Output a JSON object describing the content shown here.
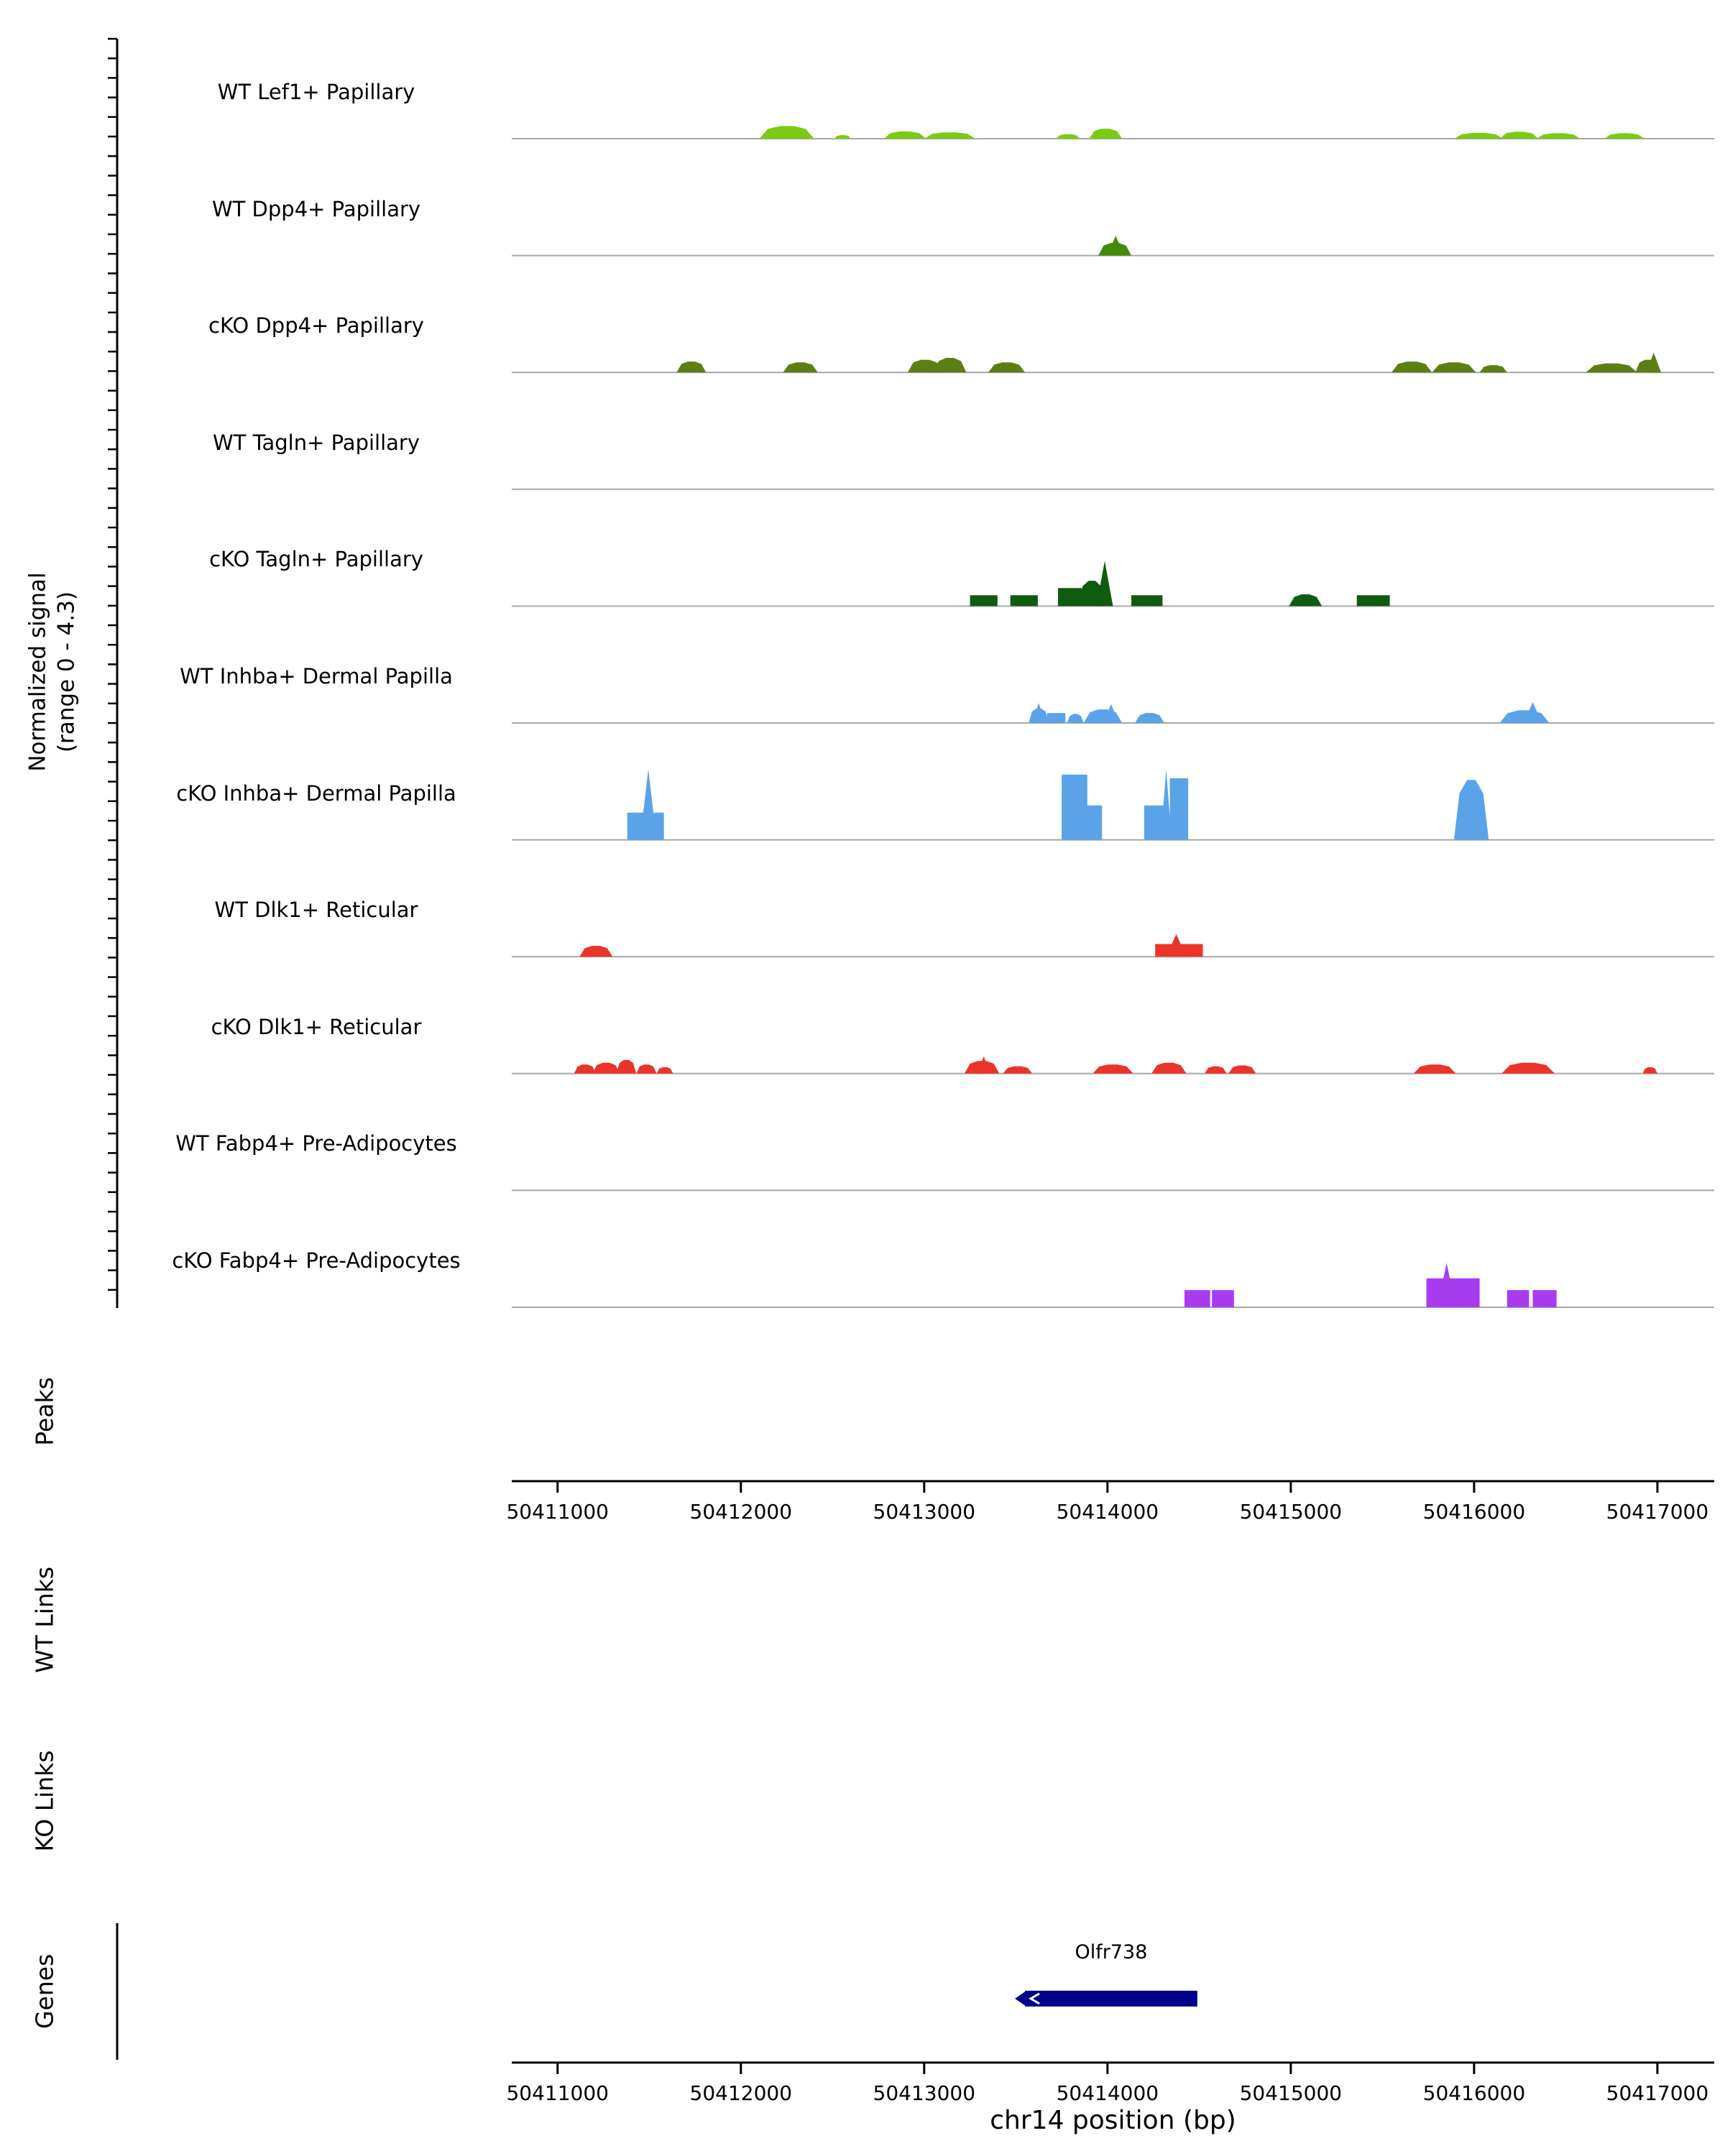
{
  "y_axis": {
    "label_line1": "Normalized signal",
    "label_line2": "(range 0 - 4.3)",
    "range_min": 0,
    "range_max": 4.3
  },
  "sections": [
    {
      "id": "peaks",
      "label": "Peaks"
    },
    {
      "id": "wt_links",
      "label": "WT Links"
    },
    {
      "id": "ko_links",
      "label": "KO Links"
    },
    {
      "id": "genes",
      "label": "Genes"
    }
  ],
  "x_axis": {
    "title": "chr14 position (bp)",
    "tick_values": [
      50411000,
      50412000,
      50413000,
      50414000,
      50415000,
      50416000,
      50417000
    ],
    "tick_labels": [
      "50411000",
      "50412000",
      "50413000",
      "50414000",
      "50415000",
      "50416000",
      "50417000"
    ],
    "domain": [
      50410750,
      50417310
    ]
  },
  "genes": [
    {
      "name": "Olfr738",
      "start": 50413550,
      "end": 50414490,
      "strand": "-",
      "color": "#00008B"
    }
  ],
  "colors": {
    "baseline": "#A8A8A8",
    "axis": "#000000",
    "gene": "#00008B"
  },
  "chart_data": {
    "type": "area",
    "title": "",
    "xlabel": "chr14 position (bp)",
    "ylabel": "Normalized signal (range 0 - 4.3)",
    "x_domain": [
      50410750,
      50417310
    ],
    "y_range": [
      0,
      4.3
    ],
    "peak_format": "[start_bp, end_bp, height_normalized, shape(b=bump,r=rect,s=spike)]",
    "tracks": [
      {
        "label": "WT Lef1+ Papillary",
        "color": "#79CC13",
        "peaks": [
          [
            50412100,
            50412400,
            0.7,
            "b"
          ],
          [
            50412510,
            50412600,
            0.2,
            "b"
          ],
          [
            50412780,
            50413010,
            0.4,
            "b"
          ],
          [
            50413000,
            50413280,
            0.35,
            "b"
          ],
          [
            50413720,
            50413850,
            0.25,
            "b"
          ],
          [
            50413900,
            50414080,
            0.55,
            "b"
          ],
          [
            50415890,
            50416160,
            0.32,
            "b"
          ],
          [
            50416140,
            50416350,
            0.38,
            "b"
          ],
          [
            50416340,
            50416580,
            0.3,
            "b"
          ],
          [
            50416710,
            50416930,
            0.3,
            "b"
          ]
        ]
      },
      {
        "label": "WT Dpp4+ Papillary",
        "color": "#438A0B",
        "peaks": [
          [
            50413950,
            50414130,
            0.7,
            "b"
          ],
          [
            50414000,
            50414090,
            1.1,
            "s"
          ]
        ]
      },
      {
        "label": "cKO Dpp4+ Papillary",
        "color": "#5D7E12",
        "peaks": [
          [
            50411650,
            50411810,
            0.6,
            "b"
          ],
          [
            50412230,
            50412420,
            0.55,
            "b"
          ],
          [
            50412910,
            50413100,
            0.7,
            "b"
          ],
          [
            50413050,
            50413230,
            0.8,
            "b"
          ],
          [
            50413350,
            50413550,
            0.55,
            "b"
          ],
          [
            50415550,
            50415770,
            0.6,
            "b"
          ],
          [
            50415770,
            50416010,
            0.55,
            "b"
          ],
          [
            50416030,
            50416180,
            0.4,
            "b"
          ],
          [
            50416610,
            50416890,
            0.5,
            "b"
          ],
          [
            50416880,
            50417020,
            0.7,
            "b"
          ],
          [
            50416940,
            50417020,
            1.1,
            "s"
          ]
        ]
      },
      {
        "label": "WT Tagln+ Papillary",
        "color": "#3B7A23",
        "peaks": []
      },
      {
        "label": "cKO Tagln+ Papillary",
        "color": "#115B11",
        "peaks": [
          [
            50413250,
            50413400,
            0.6,
            "r"
          ],
          [
            50413470,
            50413620,
            0.6,
            "r"
          ],
          [
            50413730,
            50413860,
            1.0,
            "r"
          ],
          [
            50413840,
            50413990,
            1.4,
            "b"
          ],
          [
            50413940,
            50414030,
            2.5,
            "s"
          ],
          [
            50414130,
            50414300,
            0.6,
            "r"
          ],
          [
            50414990,
            50415170,
            0.65,
            "b"
          ],
          [
            50415360,
            50415540,
            0.6,
            "r"
          ]
        ]
      },
      {
        "label": "WT Inhba+ Dermal Papilla",
        "color": "#5BA3E8",
        "peaks": [
          [
            50413570,
            50413680,
            0.8,
            "b"
          ],
          [
            50413590,
            50413660,
            1.1,
            "s"
          ],
          [
            50413670,
            50413770,
            0.55,
            "r"
          ],
          [
            50413780,
            50413870,
            0.5,
            "b"
          ],
          [
            50413870,
            50414080,
            0.75,
            "b"
          ],
          [
            50413980,
            50414060,
            1.05,
            "s"
          ],
          [
            50414150,
            50414310,
            0.55,
            "b"
          ],
          [
            50416140,
            50416410,
            0.7,
            "b"
          ],
          [
            50416270,
            50416370,
            1.15,
            "s"
          ]
        ]
      },
      {
        "label": "cKO Inhba+ Dermal Papilla",
        "color": "#5BA3E8",
        "peaks": [
          [
            50411380,
            50411580,
            1.5,
            "r"
          ],
          [
            50411450,
            50411540,
            3.9,
            "s"
          ],
          [
            50413750,
            50413890,
            3.6,
            "r"
          ],
          [
            50413880,
            50413970,
            1.9,
            "r"
          ],
          [
            50414200,
            50414310,
            1.9,
            "r"
          ],
          [
            50414290,
            50414350,
            3.9,
            "s"
          ],
          [
            50414340,
            50414440,
            3.4,
            "r"
          ],
          [
            50415890,
            50416080,
            3.3,
            "b"
          ]
        ]
      },
      {
        "label": "WT Dlk1+ Reticular",
        "color": "#EA342A",
        "peaks": [
          [
            50411120,
            50411300,
            0.6,
            "b"
          ],
          [
            50414260,
            50414520,
            0.7,
            "r"
          ],
          [
            50414320,
            50414430,
            1.25,
            "s"
          ]
        ]
      },
      {
        "label": "cKO Dlk1+ Reticular",
        "color": "#EA342A",
        "peaks": [
          [
            50411090,
            50411210,
            0.5,
            "b"
          ],
          [
            50411190,
            50411340,
            0.6,
            "b"
          ],
          [
            50411320,
            50411430,
            0.75,
            "b"
          ],
          [
            50411430,
            50411540,
            0.5,
            "b"
          ],
          [
            50411540,
            50411630,
            0.35,
            "b"
          ],
          [
            50413220,
            50413410,
            0.7,
            "b"
          ],
          [
            50413290,
            50413360,
            0.95,
            "s"
          ],
          [
            50413430,
            50413590,
            0.4,
            "b"
          ],
          [
            50413920,
            50414140,
            0.5,
            "b"
          ],
          [
            50414240,
            50414430,
            0.6,
            "b"
          ],
          [
            50414530,
            50414650,
            0.4,
            "b"
          ],
          [
            50414660,
            50414810,
            0.45,
            "b"
          ],
          [
            50415670,
            50415900,
            0.5,
            "b"
          ],
          [
            50416150,
            50416440,
            0.6,
            "b"
          ],
          [
            50416920,
            50417000,
            0.35,
            "b"
          ]
        ]
      },
      {
        "label": "WT Fabp4+ Pre-Adipocytes",
        "color": "#B465F0",
        "peaks": []
      },
      {
        "label": "cKO Fabp4+ Pre-Adipocytes",
        "color": "#A93BF0",
        "peaks": [
          [
            50414420,
            50414560,
            0.95,
            "r"
          ],
          [
            50414570,
            50414690,
            0.95,
            "r"
          ],
          [
            50415740,
            50416030,
            1.6,
            "r"
          ],
          [
            50415800,
            50415900,
            2.45,
            "s"
          ],
          [
            50416180,
            50416300,
            0.95,
            "r"
          ],
          [
            50416320,
            50416450,
            0.95,
            "r"
          ]
        ]
      }
    ]
  }
}
